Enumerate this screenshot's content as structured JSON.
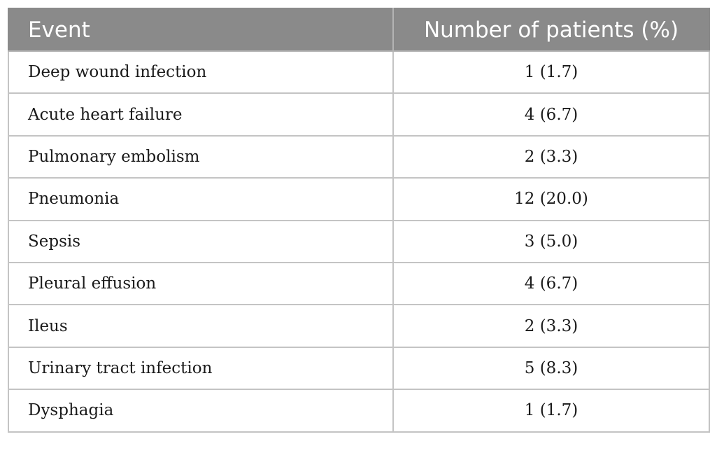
{
  "table": {
    "headers": [
      "Event",
      "Number of patients (%)"
    ],
    "rows": [
      {
        "event": "Deep wound infection",
        "count": "1 (1.7)"
      },
      {
        "event": "Acute heart failure",
        "count": "4 (6.7)"
      },
      {
        "event": "Pulmonary embolism",
        "count": "2 (3.3)"
      },
      {
        "event": "Pneumonia",
        "count": "12 (20.0)"
      },
      {
        "event": "Sepsis",
        "count": "3 (5.0)"
      },
      {
        "event": "Pleural effusion",
        "count": "4 (6.7)"
      },
      {
        "event": "Ileus",
        "count": "2 (3.3)"
      },
      {
        "event": "Urinary tract infection",
        "count": "5 (8.3)"
      },
      {
        "event": "Dysphagia",
        "count": "1 (1.7)"
      }
    ]
  },
  "colors": {
    "header_background": "#8a8a8a",
    "header_text": "#ffffff",
    "grid_lines": "#c4c4c4",
    "body_text": "#1a1a1a"
  }
}
